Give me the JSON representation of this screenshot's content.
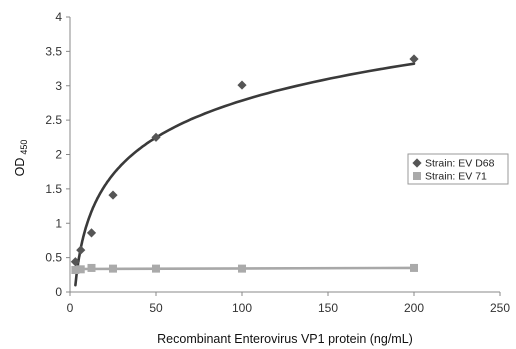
{
  "chart_data": {
    "type": "scatter",
    "title": "",
    "xlabel": "Recombinant Enterovirus VP1 protein (ng/mL)",
    "ylabel": "OD",
    "ylabel_sub": "450",
    "xlim": [
      0,
      250
    ],
    "ylim": [
      0,
      4
    ],
    "xticks": [
      0,
      50,
      100,
      150,
      200,
      250
    ],
    "yticks": [
      "0",
      "0.5",
      "1",
      "1.5",
      "2",
      "2.5",
      "3",
      "3.5",
      "4"
    ],
    "grid": false,
    "legend_position": "right",
    "series": [
      {
        "name": "Strain: EV D68",
        "marker": "diamond",
        "color": "#555555",
        "x": [
          3.125,
          6.25,
          12.5,
          25,
          50,
          100,
          200
        ],
        "y": [
          0.44,
          0.61,
          0.86,
          1.41,
          2.25,
          3.01,
          3.39
        ],
        "trendline": "logarithmic",
        "trend_color": "#3a3a3a"
      },
      {
        "name": "Strain: EV 71",
        "marker": "square",
        "color": "#aaaaaa",
        "x": [
          3.125,
          6.25,
          12.5,
          25,
          50,
          100,
          200
        ],
        "y": [
          0.32,
          0.33,
          0.35,
          0.34,
          0.34,
          0.34,
          0.35
        ],
        "trendline": "linear",
        "trend_color": "#a8a8a8"
      }
    ]
  }
}
